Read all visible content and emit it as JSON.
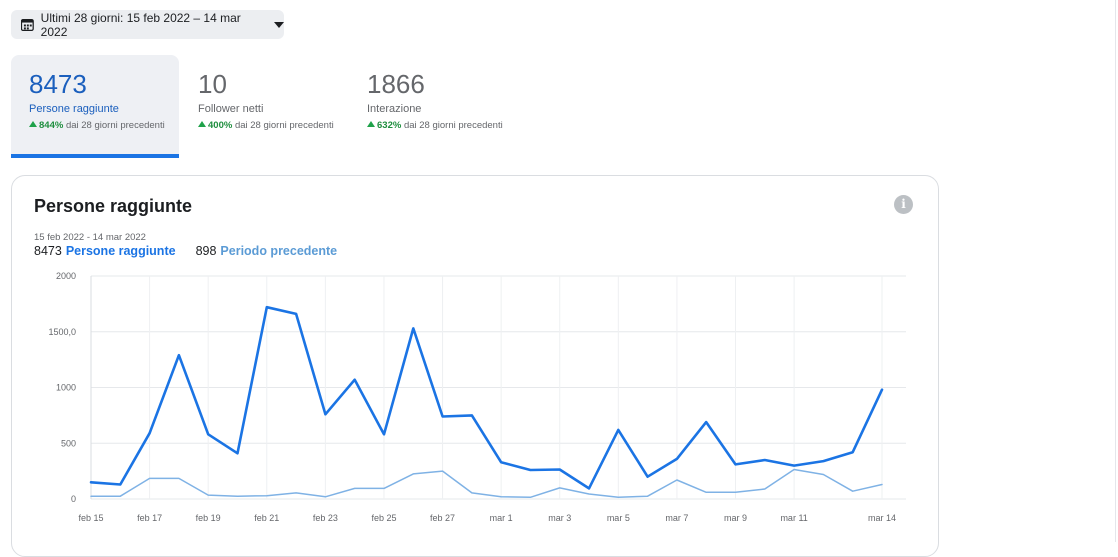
{
  "date_selector": {
    "label": "Ultimi 28 giorni: 15 feb 2022 – 14 mar 2022",
    "icon": "calendar-icon"
  },
  "metrics": [
    {
      "value": "8473",
      "label": "Persone raggiunte",
      "pct": "844%",
      "suffix": "dai 28 giorni precedenti",
      "active": true
    },
    {
      "value": "10",
      "label": "Follower netti",
      "pct": "400%",
      "suffix": "dai 28 giorni precedenti",
      "active": false
    },
    {
      "value": "1866",
      "label": "Interazione",
      "pct": "632%",
      "suffix": "dai 28 giorni precedenti",
      "active": false
    }
  ],
  "card": {
    "title": "Persone raggiunte",
    "info_icon": "i",
    "range": "15 feb 2022 - 14 mar 2022",
    "legend_current_value": "8473",
    "legend_current_label": "Persone raggiunte",
    "legend_previous_value": "898",
    "legend_previous_label": "Periodo precedente"
  },
  "colors": {
    "current": "#1b74e4",
    "previous": "#7fb2e5",
    "accent": "#1b74e4",
    "up": "#1fa24a"
  },
  "chart_data": {
    "type": "line",
    "x": [
      "feb 15",
      "feb 16",
      "feb 17",
      "feb 18",
      "feb 19",
      "feb 20",
      "feb 21",
      "feb 22",
      "feb 23",
      "feb 24",
      "feb 25",
      "feb 26",
      "feb 27",
      "feb 28",
      "mar 1",
      "mar 2",
      "mar 3",
      "mar 4",
      "mar 5",
      "mar 6",
      "mar 7",
      "mar 8",
      "mar 9",
      "mar 10",
      "mar 11",
      "mar 12",
      "mar 13",
      "mar 14"
    ],
    "x_tick_labels": [
      "feb 15",
      "feb 17",
      "feb 19",
      "feb 21",
      "feb 23",
      "feb 25",
      "feb 27",
      "mar 1",
      "mar 3",
      "mar 5",
      "mar 7",
      "mar 9",
      "mar 11",
      "mar 14"
    ],
    "y_tick_labels": [
      "0",
      "500",
      "1000",
      "1500,0",
      "2000"
    ],
    "ylim": [
      0,
      2000
    ],
    "grid": true,
    "series": [
      {
        "name": "Persone raggiunte",
        "values": [
          150,
          130,
          590,
          1290,
          580,
          410,
          1720,
          1660,
          760,
          1070,
          580,
          1530,
          740,
          750,
          330,
          260,
          265,
          95,
          620,
          200,
          360,
          690,
          310,
          350,
          300,
          340,
          420,
          980
        ]
      },
      {
        "name": "Periodo precedente",
        "values": [
          25,
          25,
          185,
          185,
          35,
          25,
          30,
          55,
          20,
          95,
          95,
          225,
          250,
          55,
          20,
          15,
          100,
          45,
          15,
          25,
          170,
          60,
          60,
          90,
          265,
          220,
          70,
          130
        ]
      }
    ]
  }
}
